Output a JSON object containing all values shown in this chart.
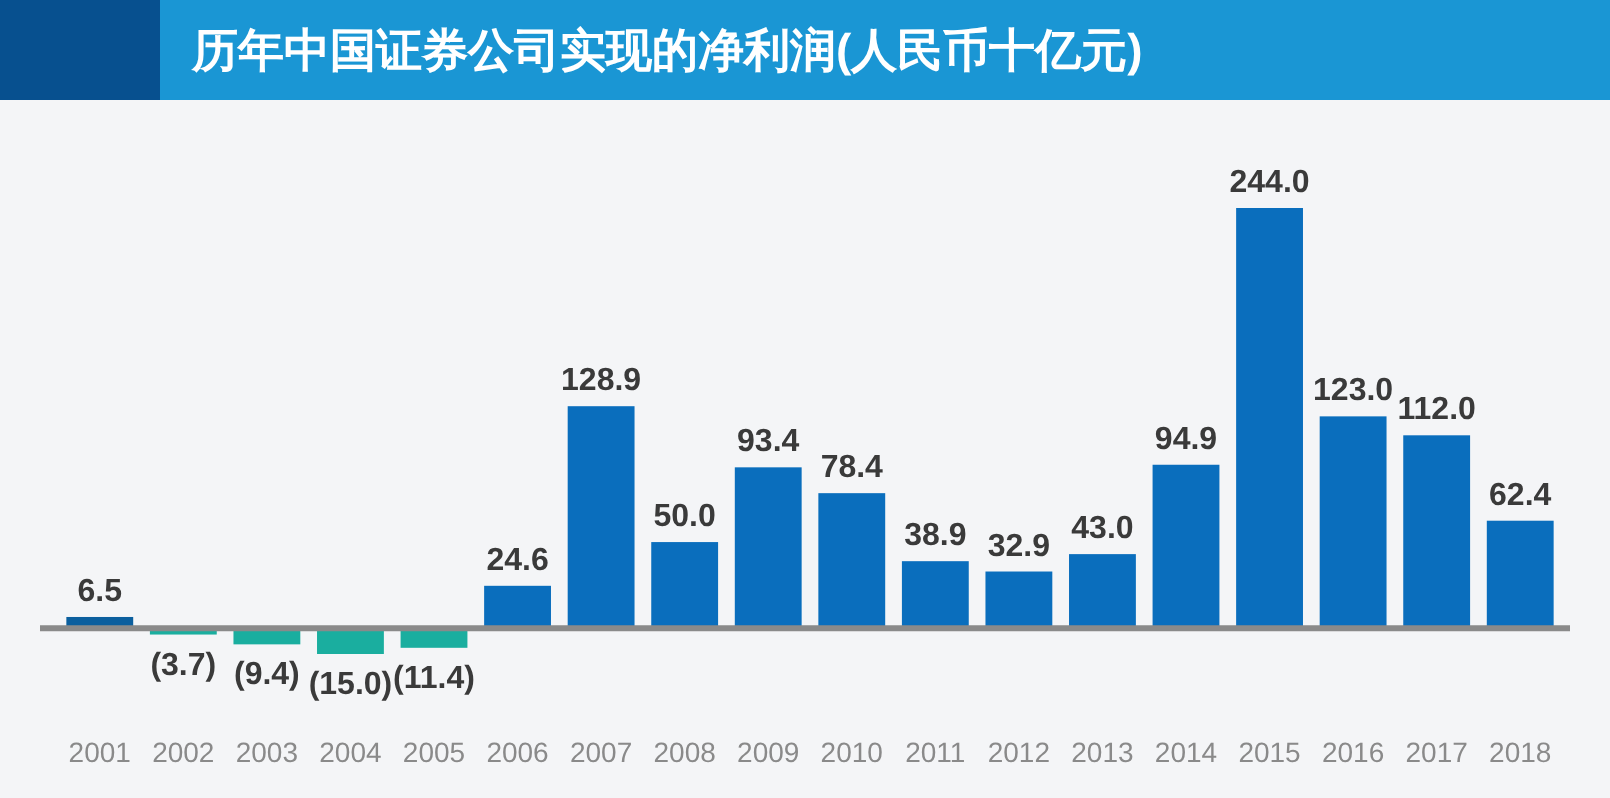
{
  "chart_data": {
    "type": "bar",
    "title": "历年中国证券公司实现的净利润(人民币十亿元)",
    "categories": [
      "2001",
      "2002",
      "2003",
      "2004",
      "2005",
      "2006",
      "2007",
      "2008",
      "2009",
      "2010",
      "2011",
      "2012",
      "2013",
      "2014",
      "2015",
      "2016",
      "2017",
      "2018"
    ],
    "values": [
      6.5,
      -3.7,
      -9.4,
      -15.0,
      -11.4,
      24.6,
      128.9,
      50.0,
      93.4,
      78.4,
      38.9,
      32.9,
      43.0,
      94.9,
      244.0,
      123.0,
      112.0,
      62.4
    ],
    "colors": [
      "#0b5f9e",
      "#1aae9f",
      "#1aae9f",
      "#1aae9f",
      "#1aae9f",
      "#0a6ebd",
      "#0a6ebd",
      "#0a6ebd",
      "#0a6ebd",
      "#0a6ebd",
      "#0a6ebd",
      "#0a6ebd",
      "#0a6ebd",
      "#0a6ebd",
      "#0a6ebd",
      "#0a6ebd",
      "#0a6ebd",
      "#0a6ebd"
    ],
    "value_labels": [
      "6.5",
      "(3.7)",
      "(9.4)",
      "(15.0)",
      "(11.4)",
      "24.6",
      "128.9",
      "50.0",
      "93.4",
      "78.4",
      "38.9",
      "32.9",
      "43.0",
      "94.9",
      "244.0",
      "123.0",
      "112.0",
      "62.4"
    ],
    "tick_labels": "x"
  }
}
